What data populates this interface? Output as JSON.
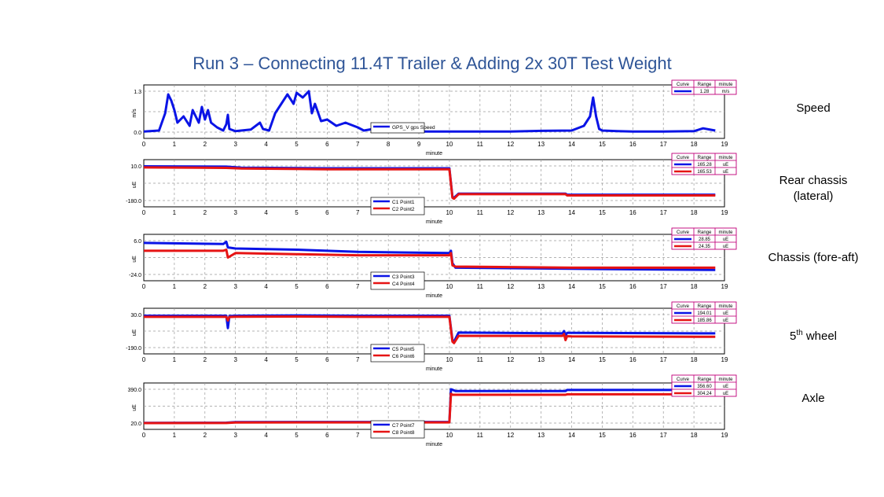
{
  "title": "Run 3 – Connecting 11.4T Trailer & Adding 2x 30T Test Weight",
  "colors": {
    "blue": "#0a14e6",
    "red": "#e61414",
    "frame": "#000000",
    "grid": "#9a9a9a",
    "legend_border": "#c0007a",
    "title": "#2f5597"
  },
  "table_headers": [
    "Curve",
    "Range",
    "minute"
  ],
  "chart_data": [
    {
      "type": "line",
      "side_label": "Speed",
      "xlabel": "minute",
      "ylabel": "m/s",
      "xlim": [
        0,
        19
      ],
      "xticks": [
        "0",
        "1",
        "2",
        "3",
        "4",
        "5",
        "6",
        "7",
        "8",
        "9",
        "10",
        "11",
        "12",
        "13",
        "14",
        "15",
        "16",
        "17",
        "18",
        "19"
      ],
      "ylim": [
        0.0,
        1.3
      ],
      "ytick_labels": [
        "1.3",
        "0.0"
      ],
      "grid": true,
      "legend_position": "bottom-center",
      "series": [
        {
          "name": "GPS_V gps Speed",
          "range": "1.28",
          "unit": "m/s",
          "color": "blue",
          "x": [
            0,
            0.5,
            0.7,
            0.8,
            0.9,
            1.0,
            1.1,
            1.3,
            1.5,
            1.6,
            1.8,
            1.9,
            2.0,
            2.1,
            2.2,
            2.4,
            2.6,
            2.7,
            2.75,
            2.8,
            3.0,
            3.5,
            3.8,
            3.9,
            4.1,
            4.3,
            4.5,
            4.7,
            4.9,
            5.0,
            5.2,
            5.4,
            5.5,
            5.6,
            5.8,
            6.0,
            6.3,
            6.6,
            7.0,
            7.2,
            7.5,
            8.0,
            9.0,
            10.0,
            11.0,
            12.0,
            13.0,
            14.0,
            14.4,
            14.6,
            14.7,
            14.8,
            14.9,
            15.0,
            15.5,
            16.0,
            17.0,
            18.0,
            18.3,
            18.7
          ],
          "y": [
            0.02,
            0.05,
            0.6,
            1.2,
            1.0,
            0.7,
            0.3,
            0.5,
            0.2,
            0.7,
            0.3,
            0.8,
            0.4,
            0.7,
            0.3,
            0.15,
            0.05,
            0.25,
            0.55,
            0.1,
            0.03,
            0.08,
            0.3,
            0.1,
            0.05,
            0.6,
            0.9,
            1.2,
            0.9,
            1.25,
            1.1,
            1.3,
            0.6,
            0.9,
            0.35,
            0.4,
            0.2,
            0.3,
            0.15,
            0.05,
            0.1,
            0.03,
            0.02,
            0.02,
            0.02,
            0.02,
            0.04,
            0.05,
            0.2,
            0.5,
            1.1,
            0.5,
            0.1,
            0.05,
            0.03,
            0.02,
            0.02,
            0.03,
            0.12,
            0.05
          ]
        }
      ]
    },
    {
      "type": "line",
      "side_label": "Rear chassis\n(lateral)",
      "xlabel": "minute",
      "ylabel": "uE",
      "xlim": [
        0,
        19
      ],
      "xticks": [
        "0",
        "1",
        "2",
        "3",
        "4",
        "5",
        "6",
        "7",
        "8",
        "9",
        "10",
        "11",
        "12",
        "13",
        "14",
        "15",
        "16",
        "17",
        "18",
        "19"
      ],
      "ylim": [
        -180.0,
        10.0
      ],
      "ytick_labels": [
        "10.0",
        "-180.0"
      ],
      "grid": true,
      "legend_position": "bottom-center",
      "series": [
        {
          "name": "C1 Point1",
          "range": "165.28",
          "unit": "uE",
          "color": "blue",
          "x": [
            0,
            2.7,
            3.2,
            6,
            10.0,
            10.1,
            10.15,
            10.3,
            13.8,
            13.85,
            18.7
          ],
          "y": [
            8,
            6,
            0,
            -3,
            -3,
            -160,
            -165,
            -142,
            -142,
            -148,
            -148
          ]
        },
        {
          "name": "C2 Point2",
          "range": "165.53",
          "unit": "uE",
          "color": "red",
          "x": [
            0,
            2.7,
            3.2,
            6,
            10.0,
            10.1,
            10.15,
            10.3,
            13.8,
            13.85,
            18.7
          ],
          "y": [
            2,
            -1,
            -4,
            -8,
            -8,
            -165,
            -170,
            -145,
            -145,
            -152,
            -152
          ]
        }
      ]
    },
    {
      "type": "line",
      "side_label": "Chassis (fore-aft)",
      "xlabel": "minute",
      "ylabel": "uE",
      "xlim": [
        0,
        19
      ],
      "xticks": [
        "0",
        "1",
        "2",
        "3",
        "4",
        "5",
        "6",
        "7",
        "8",
        "9",
        "10",
        "11",
        "12",
        "13",
        "14",
        "15",
        "16",
        "17",
        "18",
        "19"
      ],
      "ylim": [
        -24.0,
        6.0
      ],
      "ytick_labels": [
        "6.0",
        "-24.0"
      ],
      "grid": true,
      "legend_position": "bottom-center",
      "series": [
        {
          "name": "C3 Point3",
          "range": "28.85",
          "unit": "uE",
          "color": "blue",
          "x": [
            0,
            2.6,
            2.7,
            2.75,
            3.0,
            5.0,
            7.0,
            10.0,
            10.05,
            10.1,
            10.2,
            14.0,
            18.7
          ],
          "y": [
            4,
            3,
            5,
            0,
            -1,
            -2,
            -4,
            -5,
            -3,
            -14,
            -18,
            -19,
            -20
          ]
        },
        {
          "name": "C4 Point4",
          "range": "24.35",
          "unit": "uE",
          "color": "red",
          "x": [
            0,
            2.6,
            2.7,
            2.75,
            3.0,
            5.0,
            7.0,
            10.0,
            10.05,
            10.1,
            10.2,
            14.0,
            18.7
          ],
          "y": [
            -3,
            -3,
            -2,
            -9,
            -5,
            -6,
            -7,
            -7,
            -5,
            -16,
            -17,
            -18,
            -18
          ]
        }
      ]
    },
    {
      "type": "line",
      "side_label": "5th wheel",
      "xlabel": "minute",
      "ylabel": "uE",
      "xlim": [
        0,
        19
      ],
      "xticks": [
        "0",
        "1",
        "2",
        "3",
        "4",
        "5",
        "6",
        "7",
        "8",
        "9",
        "10",
        "11",
        "12",
        "13",
        "14",
        "15",
        "16",
        "17",
        "18",
        "19"
      ],
      "ylim": [
        -190.0,
        30.0
      ],
      "ytick_labels": [
        "30.0",
        "-190.0"
      ],
      "grid": true,
      "legend_position": "bottom-center",
      "series": [
        {
          "name": "C5 Point5",
          "range": "194.01",
          "unit": "uE",
          "color": "blue",
          "x": [
            0,
            2.7,
            2.75,
            2.8,
            3.0,
            5.0,
            7.0,
            10.0,
            10.1,
            10.15,
            10.3,
            13.7,
            13.75,
            13.8,
            13.85,
            14.0,
            18.7
          ],
          "y": [
            22,
            22,
            -60,
            20,
            22,
            24,
            22,
            22,
            -140,
            -150,
            -90,
            -95,
            -80,
            -110,
            -92,
            -92,
            -95
          ]
        },
        {
          "name": "C6 Point6",
          "range": "185.86",
          "unit": "uE",
          "color": "red",
          "x": [
            0,
            2.7,
            2.75,
            2.8,
            3.0,
            5.0,
            7.0,
            10.0,
            10.1,
            10.15,
            10.3,
            13.7,
            13.75,
            13.8,
            13.85,
            14.0,
            18.7
          ],
          "y": [
            15,
            15,
            -10,
            14,
            16,
            17,
            15,
            15,
            -150,
            -160,
            -112,
            -112,
            -100,
            -140,
            -114,
            -115,
            -118
          ]
        }
      ]
    },
    {
      "type": "line",
      "side_label": "Axle",
      "xlabel": "minute",
      "ylabel": "uE",
      "xlim": [
        0,
        19
      ],
      "xticks": [
        "0",
        "1",
        "2",
        "3",
        "4",
        "5",
        "6",
        "7",
        "8",
        "9",
        "10",
        "11",
        "12",
        "13",
        "14",
        "15",
        "16",
        "17",
        "18",
        "19"
      ],
      "ylim": [
        20.0,
        390.0
      ],
      "ytick_labels": [
        "390.0",
        "20.0"
      ],
      "grid": true,
      "legend_position": "bottom-center",
      "series": [
        {
          "name": "C7 Point7",
          "range": "356.60",
          "unit": "uE",
          "color": "blue",
          "x": [
            0,
            2.7,
            3.0,
            6.0,
            10.0,
            10.05,
            10.1,
            10.2,
            13.8,
            13.85,
            18.7
          ],
          "y": [
            22,
            24,
            30,
            32,
            32,
            390,
            385,
            370,
            370,
            382,
            382
          ]
        },
        {
          "name": "C8 Point8",
          "range": "304.24",
          "unit": "uE",
          "color": "red",
          "x": [
            0,
            2.7,
            3.0,
            6.0,
            10.0,
            10.05,
            10.1,
            10.2,
            13.8,
            13.85,
            18.7
          ],
          "y": [
            20,
            21,
            26,
            28,
            28,
            340,
            330,
            330,
            330,
            335,
            335
          ]
        }
      ]
    }
  ]
}
